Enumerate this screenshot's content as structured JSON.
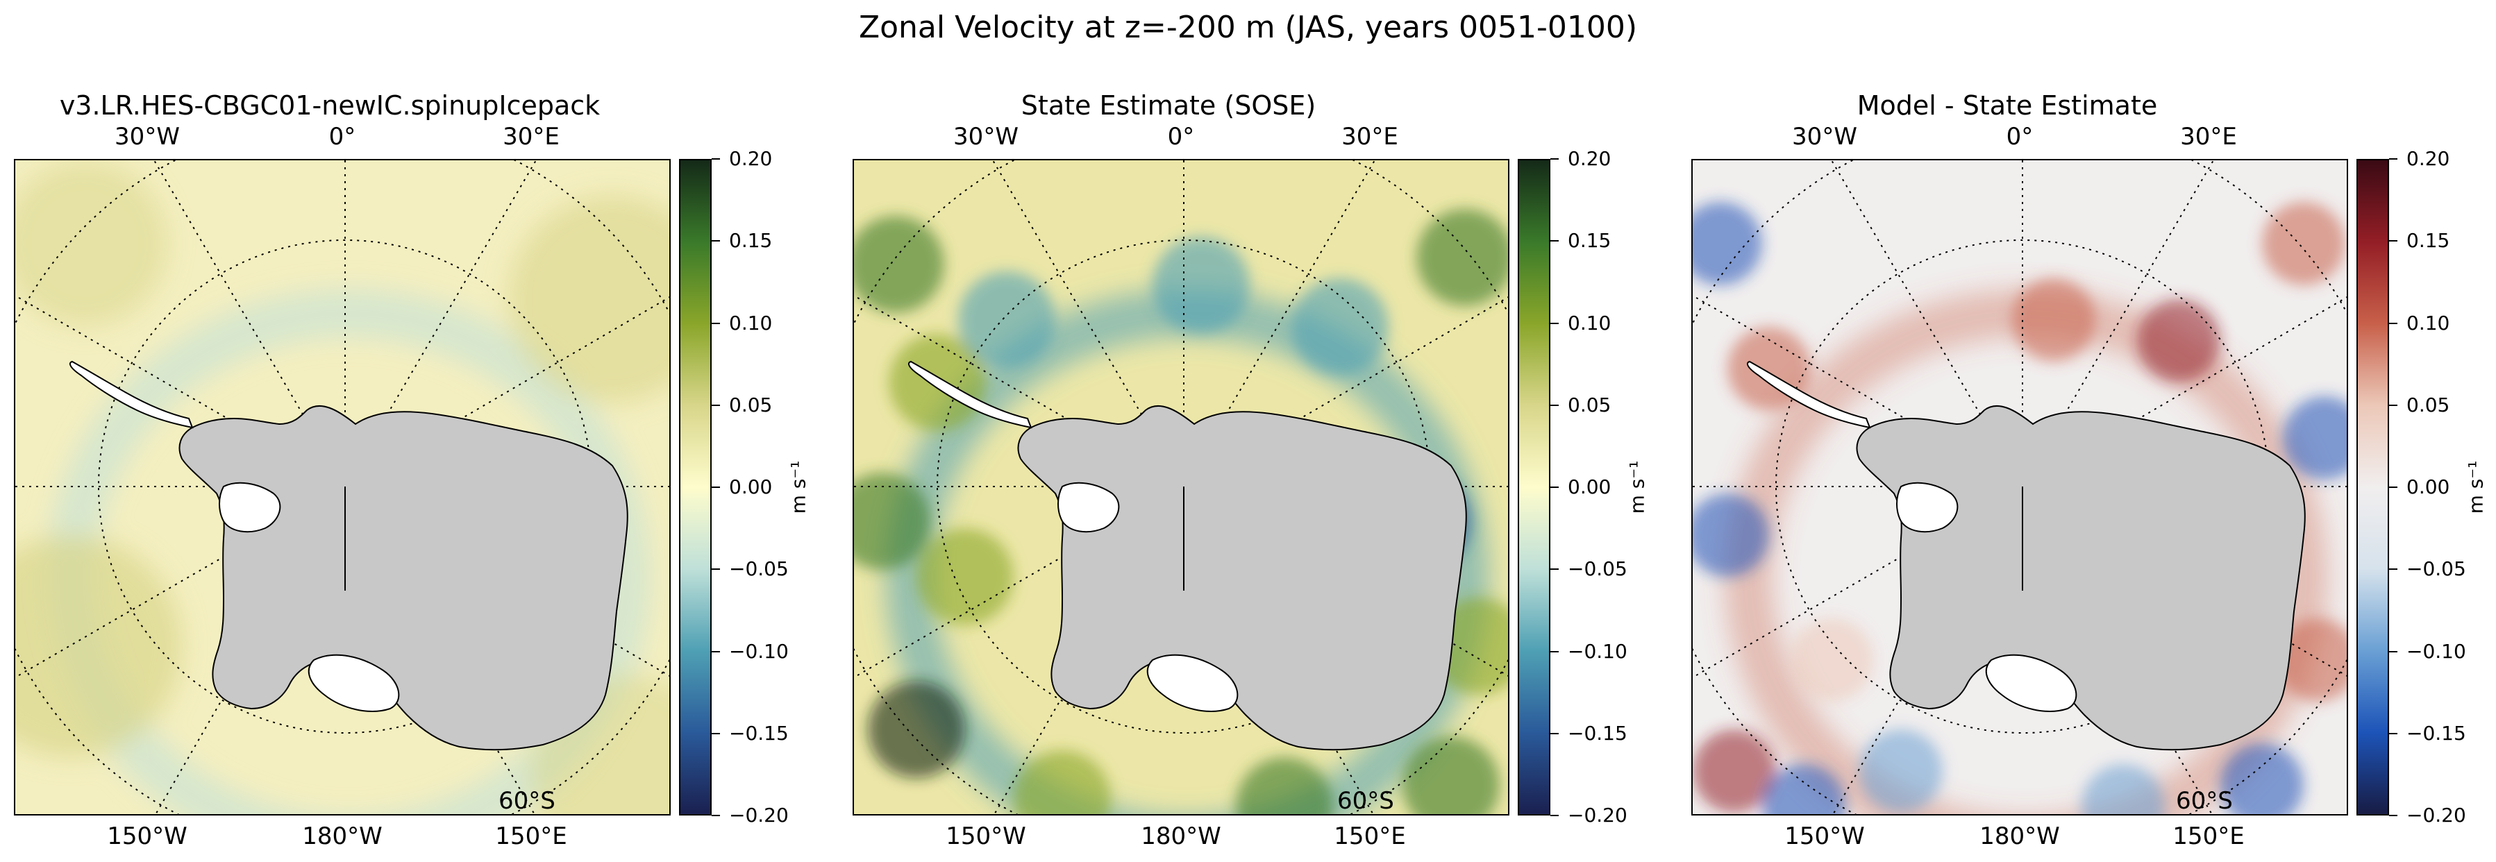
{
  "figure": {
    "title": "Zonal Velocity at z=-200 m (JAS, years 0051-0100)"
  },
  "panels": [
    {
      "title": "v3.LR.HES-CBGC01-newIC.spinupIcepack",
      "colormap": "delta",
      "top_lon_labels": [
        "30°W",
        "0°",
        "30°E"
      ],
      "bottom_lon_labels": [
        "150°W",
        "180°W",
        "150°E"
      ],
      "lat_label": "60°S",
      "colorbar_unit": "m s⁻¹",
      "colorbar_ticks": [
        "0.20",
        "0.15",
        "0.10",
        "0.05",
        "0.00",
        "−0.05",
        "−0.10",
        "−0.15",
        "−0.20"
      ]
    },
    {
      "title": "State Estimate (SOSE)",
      "colormap": "delta",
      "top_lon_labels": [
        "30°W",
        "0°",
        "30°E"
      ],
      "bottom_lon_labels": [
        "150°W",
        "180°W",
        "150°E"
      ],
      "lat_label": "60°S",
      "colorbar_unit": "m s⁻¹",
      "colorbar_ticks": [
        "0.20",
        "0.15",
        "0.10",
        "0.05",
        "0.00",
        "−0.05",
        "−0.10",
        "−0.15",
        "−0.20"
      ]
    },
    {
      "title": "Model - State Estimate",
      "colormap": "balance",
      "top_lon_labels": [
        "30°W",
        "0°",
        "30°E"
      ],
      "bottom_lon_labels": [
        "150°W",
        "180°W",
        "150°E"
      ],
      "lat_label": "60°S",
      "colorbar_unit": "m s⁻¹",
      "colorbar_ticks": [
        "0.20",
        "0.15",
        "0.10",
        "0.05",
        "0.00",
        "−0.05",
        "−0.10",
        "−0.15",
        "−0.20"
      ]
    }
  ],
  "colors": {
    "land": "#c8c8c8",
    "ice_shelf": "#ffffff",
    "delta_ramp": [
      "#1a2050",
      "#2a5a9a",
      "#4fa0b4",
      "#bfe0d8",
      "#fefccc",
      "#d8d68a",
      "#8aa62a",
      "#3a7a2a",
      "#142a18"
    ],
    "balance_ramp": [
      "#181c44",
      "#1d54b8",
      "#6aa0d4",
      "#d6e2ec",
      "#f1eeee",
      "#ecc8b8",
      "#c8604a",
      "#941e26",
      "#3a0a14"
    ]
  }
}
